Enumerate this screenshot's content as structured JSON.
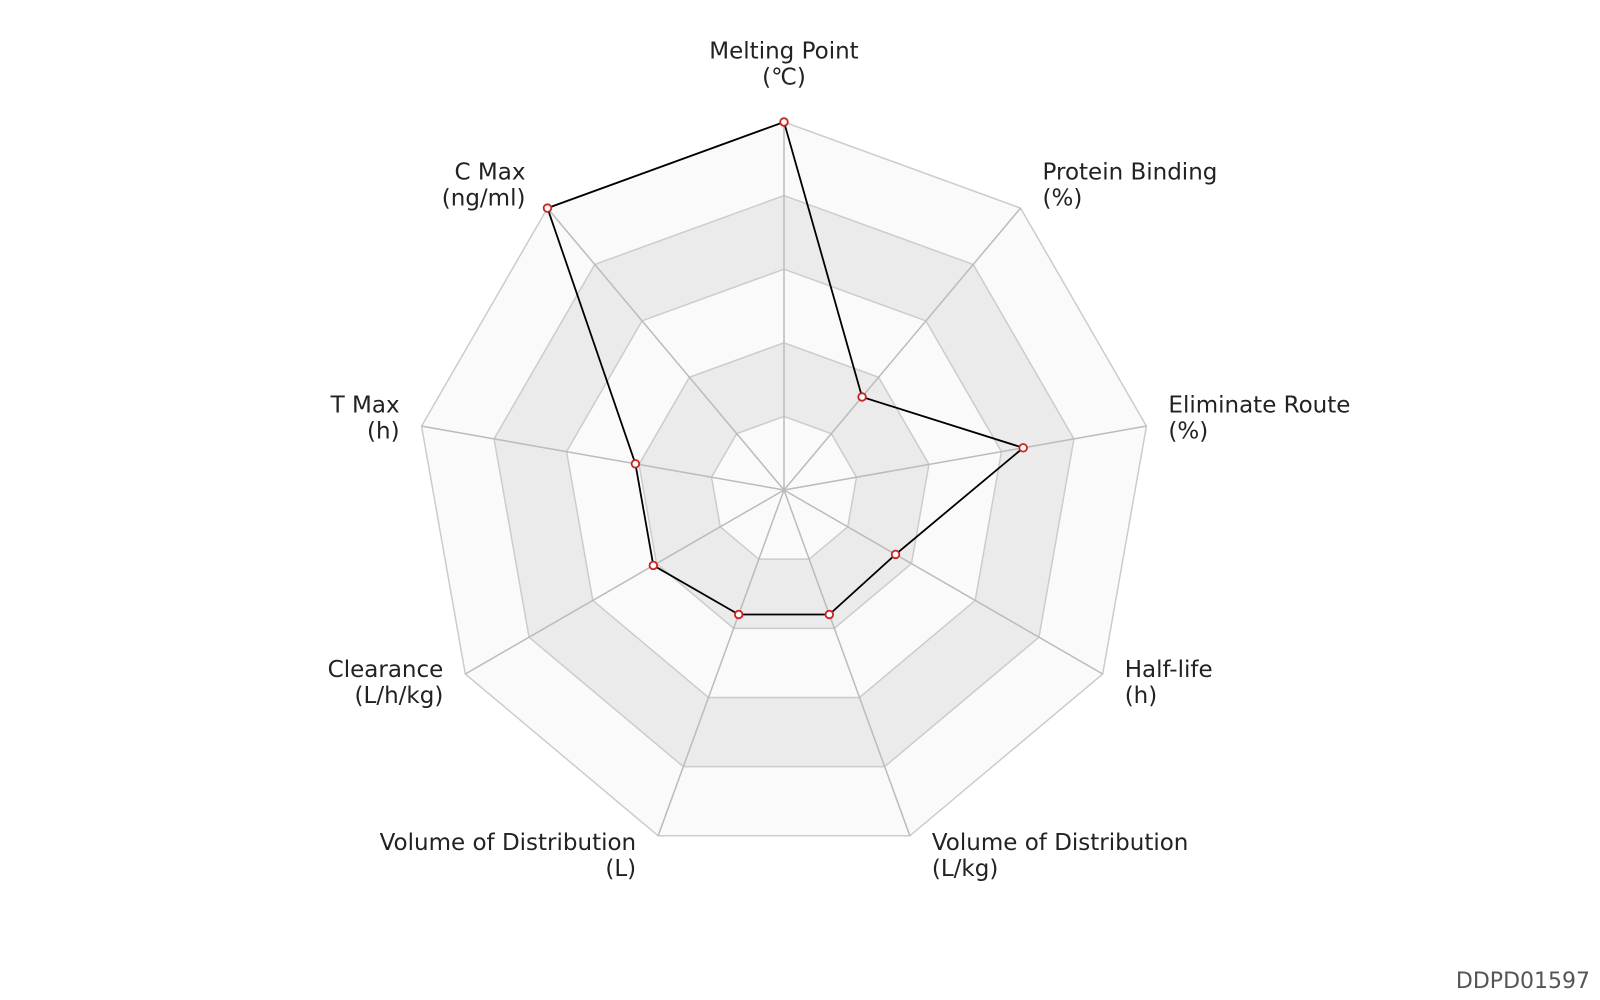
{
  "chart_data": {
    "type": "radar",
    "categories": [
      "Melting Point",
      "Protein Binding",
      "Eliminate Route",
      "Half-life",
      "Volume of Distribution",
      "Volume of Distribution",
      "Clearance",
      "T Max",
      "C Max"
    ],
    "units": [
      "(℃)",
      "(%)",
      "(%)",
      "(h)",
      "(L/kg)",
      "(L)",
      "(L/h/kg)",
      "(h)",
      "(ng/ml)"
    ],
    "values": [
      1.0,
      0.33,
      0.66,
      0.35,
      0.36,
      0.36,
      0.41,
      0.41,
      1.0
    ],
    "color": "#000000",
    "marker_color": "#cc2222",
    "ylim": [
      0,
      1
    ],
    "yticks": [
      0,
      0.2,
      0.4,
      0.6,
      0.8,
      1.0
    ],
    "grid": true,
    "watermark": "DDPD01597"
  }
}
